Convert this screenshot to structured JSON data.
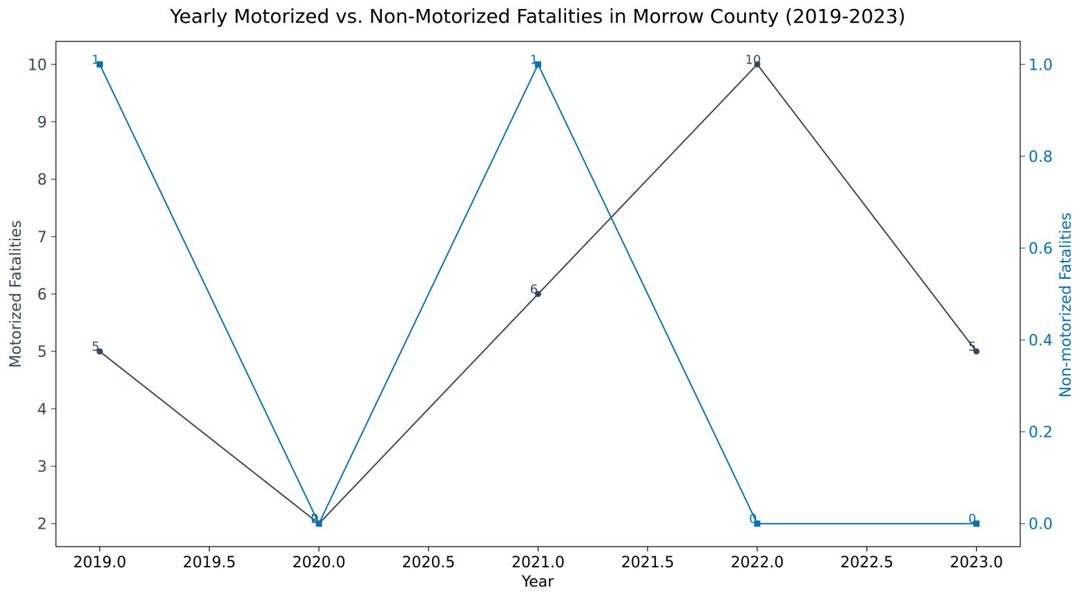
{
  "chart_data": {
    "type": "line",
    "title": "Yearly Motorized vs. Non-Motorized Fatalities in Morrow County (2019-2023)",
    "xlabel": "Year",
    "ylabel": "Motorized Fatalities",
    "y2label": "Non-motorized Fatalities",
    "x": [
      2019,
      2020,
      2021,
      2022,
      2023
    ],
    "xlim": [
      2018.8,
      2023.2
    ],
    "xticks": [
      "2019.0",
      "2019.5",
      "2020.0",
      "2020.5",
      "2021.0",
      "2021.5",
      "2022.0",
      "2022.5",
      "2023.0"
    ],
    "ylim": [
      1.6,
      10.4
    ],
    "yticks": [
      "2",
      "3",
      "4",
      "5",
      "6",
      "7",
      "8",
      "9",
      "10"
    ],
    "y2lim": [
      -0.05,
      1.05
    ],
    "y2ticks": [
      "0.0",
      "0.2",
      "0.4",
      "0.6",
      "0.8",
      "1.0"
    ],
    "grid": false,
    "series": [
      {
        "values": [
          5,
          2,
          6,
          10,
          5
        ],
        "labels": [
          "5",
          "2",
          "6",
          "10",
          "5"
        ],
        "axis": "left",
        "marker": "circle",
        "color": "#34495e"
      },
      {
        "values": [
          1,
          0,
          1,
          0,
          0
        ],
        "labels": [
          "1",
          "0",
          "1",
          "0",
          "0"
        ],
        "axis": "right",
        "marker": "square",
        "color": "#0072bd"
      }
    ]
  }
}
